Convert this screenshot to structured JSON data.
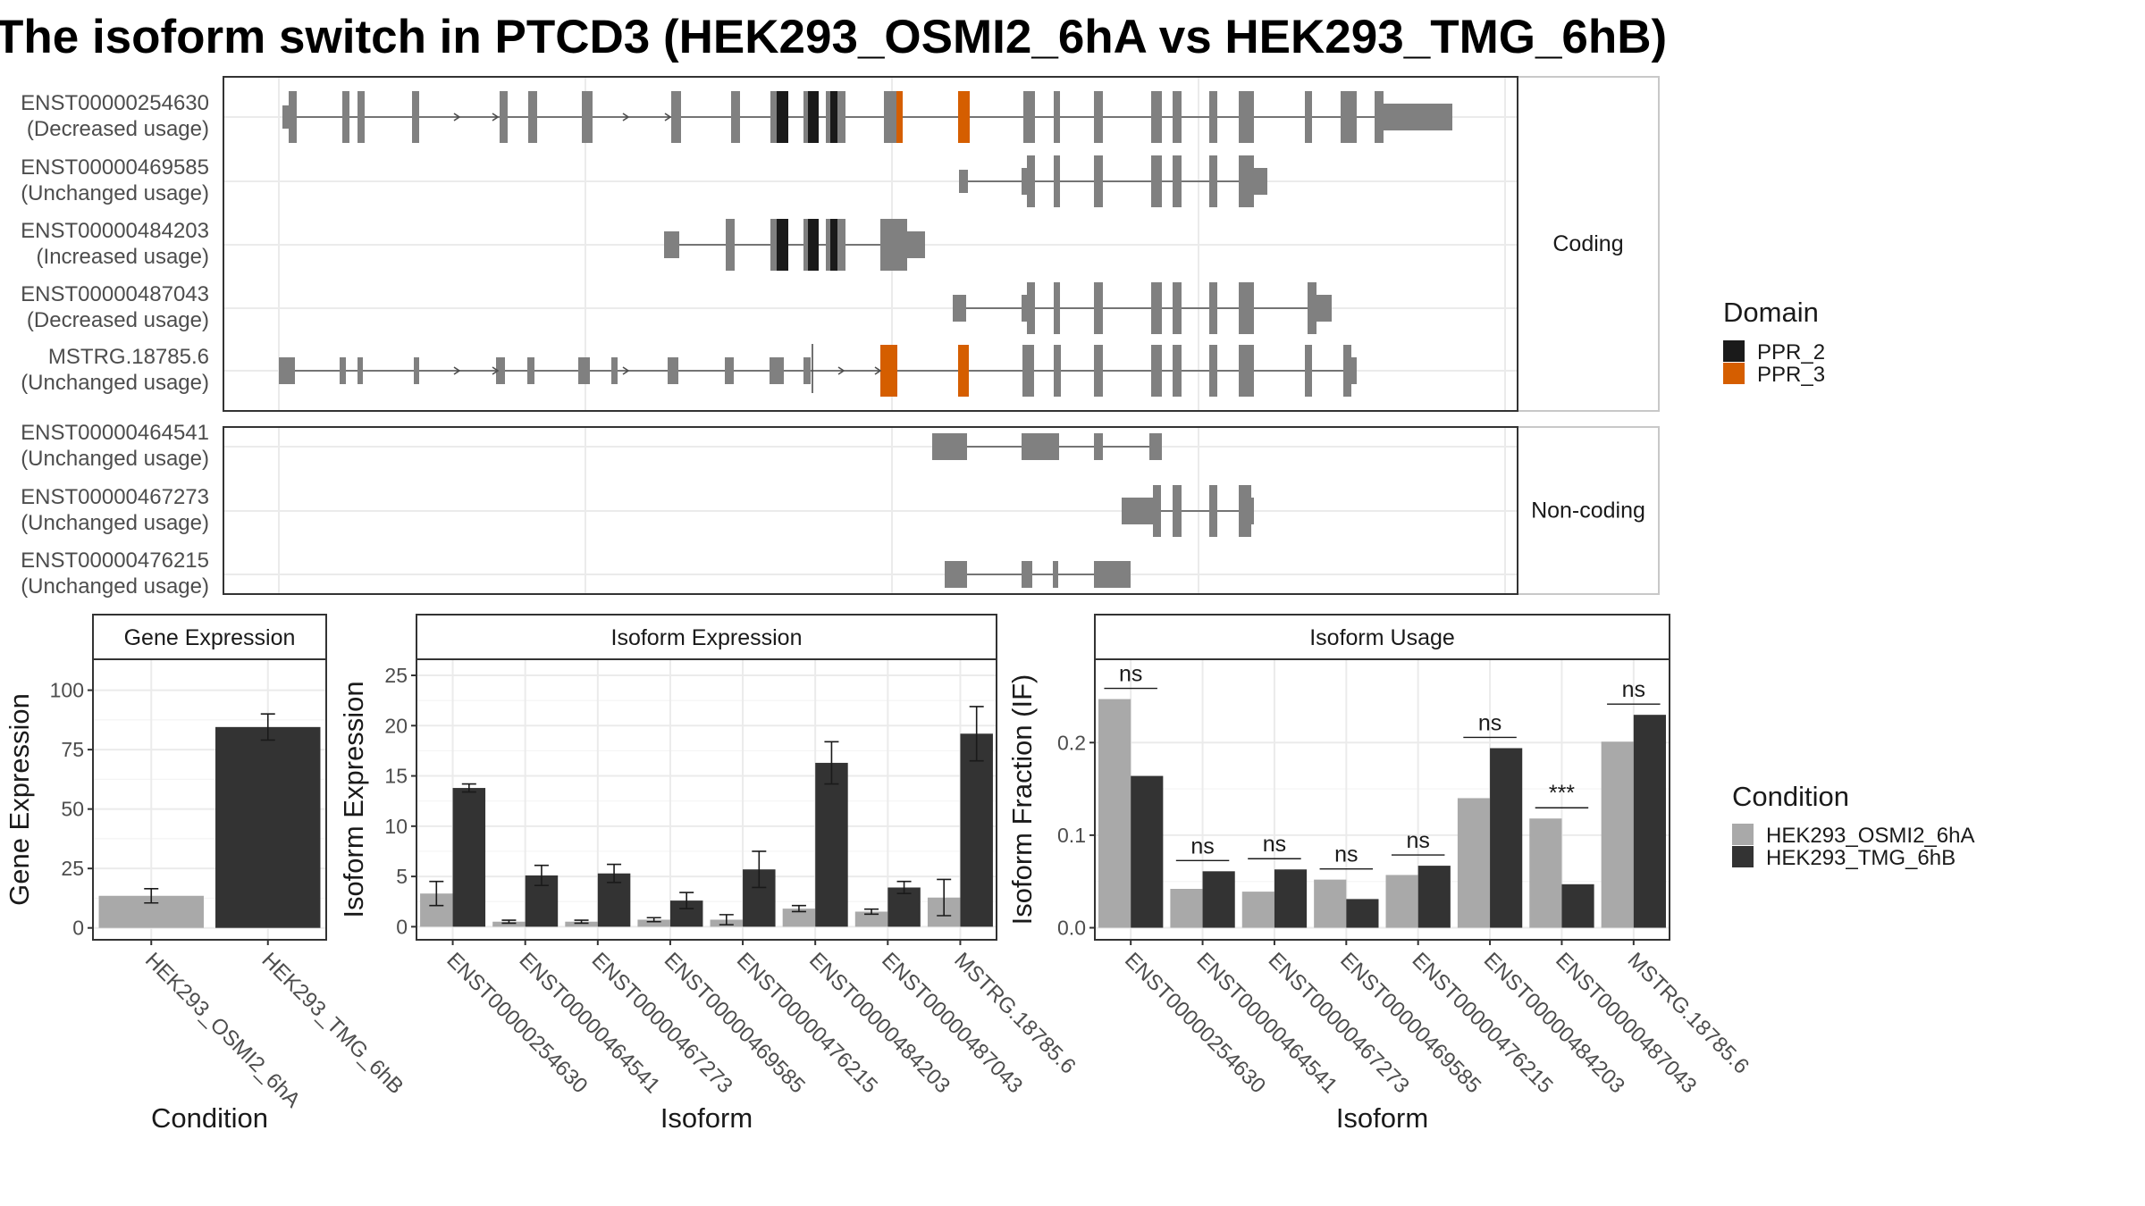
{
  "title": "The isoform switch in PTCD3 (HEK293_OSMI2_6hA vs HEK293_TMG_6hB)",
  "colors": {
    "exon": "#808080",
    "ppr2": "#1a1a1a",
    "ppr3": "#d55e00",
    "cond1": "#a9a9a9",
    "cond2": "#333333"
  },
  "chart_data": [
    {
      "type": "gene-structure",
      "panel": "Coding",
      "transcripts": [
        {
          "id": "ENST00000254630",
          "usage": "(Decreased usage)"
        },
        {
          "id": "ENST00000469585",
          "usage": "(Unchanged usage)"
        },
        {
          "id": "ENST00000484203",
          "usage": "(Increased usage)"
        },
        {
          "id": "ENST00000487043",
          "usage": "(Decreased usage)"
        },
        {
          "id": "MSTRG.18785.6",
          "usage": "(Unchanged usage)"
        }
      ],
      "legend": {
        "title": "Domain",
        "entries": [
          "PPR_2",
          "PPR_3"
        ]
      }
    },
    {
      "type": "gene-structure",
      "panel": "Non-coding",
      "transcripts": [
        {
          "id": "ENST00000464541",
          "usage": "(Unchanged usage)"
        },
        {
          "id": "ENST00000467273",
          "usage": "(Unchanged usage)"
        },
        {
          "id": "ENST00000476215",
          "usage": "(Unchanged usage)"
        }
      ]
    },
    {
      "type": "bar",
      "panel": "Gene Expression",
      "xlabel": "Condition",
      "ylabel": "Gene Expression",
      "ylim": [
        -5,
        113
      ],
      "yticks": [
        0,
        25,
        50,
        75,
        100
      ],
      "categories": [
        "HEK293_OSMI2_6hA",
        "HEK293_TMG_6hB"
      ],
      "values": [
        13.5,
        84.5
      ],
      "err": [
        3,
        5.5
      ]
    },
    {
      "type": "bar",
      "panel": "Isoform Expression",
      "xlabel": "Isoform",
      "ylabel": "Isoform Expression",
      "ylim": [
        -1.3,
        26.6
      ],
      "yticks": [
        0,
        5,
        10,
        15,
        20,
        25
      ],
      "categories": [
        "ENST00000254630",
        "ENST00000464541",
        "ENST00000467273",
        "ENST00000469585",
        "ENST00000476215",
        "ENST00000484203",
        "ENST00000487043",
        "MSTRG.18785.6"
      ],
      "series": [
        {
          "name": "HEK293_OSMI2_6hA",
          "values": [
            3.3,
            0.5,
            0.5,
            0.7,
            0.7,
            1.8,
            1.5,
            2.9
          ],
          "err": [
            1.2,
            0.15,
            0.15,
            0.2,
            0.5,
            0.3,
            0.25,
            1.8
          ]
        },
        {
          "name": "HEK293_TMG_6hB",
          "values": [
            13.8,
            5.1,
            5.3,
            2.6,
            5.7,
            16.3,
            3.9,
            19.2
          ],
          "err": [
            0.4,
            1.0,
            0.9,
            0.8,
            1.8,
            2.1,
            0.6,
            2.7
          ]
        }
      ]
    },
    {
      "type": "bar",
      "panel": "Isoform Usage",
      "xlabel": "Isoform",
      "ylabel": "Isoform Fraction (IF)",
      "ylim": [
        -0.013,
        0.29
      ],
      "yticks": [
        0,
        0.1,
        0.2
      ],
      "ytick_labels": [
        "0.0",
        "0.1",
        "0.2"
      ],
      "categories": [
        "ENST00000254630",
        "ENST00000464541",
        "ENST00000467273",
        "ENST00000469585",
        "ENST00000476215",
        "ENST00000484203",
        "ENST00000487043",
        "MSTRG.18785.6"
      ],
      "series": [
        {
          "name": "HEK293_OSMI2_6hA",
          "values": [
            0.247,
            0.042,
            0.039,
            0.052,
            0.057,
            0.14,
            0.118,
            0.201
          ]
        },
        {
          "name": "HEK293_TMG_6hB",
          "values": [
            0.164,
            0.061,
            0.063,
            0.031,
            0.067,
            0.194,
            0.047,
            0.23
          ]
        }
      ],
      "significance": [
        "ns",
        "ns",
        "ns",
        "ns",
        "ns",
        "ns",
        "***",
        "ns"
      ]
    }
  ],
  "legend_condition": {
    "title": "Condition",
    "entries": [
      "HEK293_OSMI2_6hA",
      "HEK293_TMG_6hB"
    ]
  }
}
